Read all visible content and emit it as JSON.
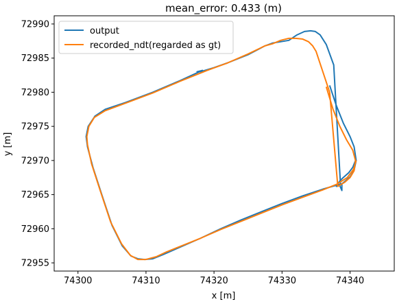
{
  "chart_data": {
    "type": "line",
    "title": "mean_error: 0.433 (m)",
    "xlabel": "x [m]",
    "ylabel": "y [m]",
    "xlim": [
      74296.5,
      74346.5
    ],
    "ylim": [
      72953.8,
      72991.2
    ],
    "x_ticks": [
      74300,
      74310,
      74320,
      74330,
      74340
    ],
    "y_ticks": [
      72955,
      72960,
      72965,
      72970,
      72975,
      72980,
      72985,
      72990
    ],
    "x_tick_labels": [
      "74300",
      "74310",
      "74320",
      "74330",
      "74340"
    ],
    "y_tick_labels": [
      "72955",
      "72960",
      "72965",
      "72970",
      "72975",
      "72980",
      "72985",
      "72990"
    ],
    "grid": false,
    "legend_position": "upper-left",
    "series": [
      {
        "name": "output",
        "color": "#1f77b4",
        "x": [
          74337.0,
          74338.0,
          74339.0,
          74340.0,
          74340.6,
          74340.9,
          74340.6,
          74340.0,
          74339.3,
          74338.6,
          74337.6,
          74336.5,
          74335.6,
          74334.9,
          74334.2,
          74333.3,
          74332.2,
          74331.0,
          74329.8,
          74328.6,
          74327.5,
          74325.0,
          74322.0,
          74320.0,
          74318.0,
          74317.5,
          74318.3,
          74315.0,
          74311.0,
          74307.0,
          74304.0,
          74302.5,
          74301.5,
          74301.2,
          74301.4,
          74302.2,
          74303.5,
          74305.0,
          74306.5,
          74307.8,
          74308.8,
          74309.8,
          74311.0,
          74312.5,
          74315.0,
          74318.0,
          74321.0,
          74324.0,
          74327.0,
          74330.0,
          74333.0,
          74336.0,
          74338.8,
          74338.8,
          74338.5,
          74338.2,
          74338.0,
          74338.2,
          74338.5,
          74339.0,
          74339.8,
          74340.4,
          74340.8
        ],
        "y": [
          72981.0,
          72978.0,
          72975.5,
          72973.5,
          72972.0,
          72970.0,
          72968.6,
          72967.6,
          72967.0,
          72966.4,
          72984.0,
          72987.0,
          72988.4,
          72988.9,
          72989.0,
          72988.9,
          72988.4,
          72987.6,
          72987.4,
          72987.2,
          72986.8,
          72985.5,
          72984.3,
          72983.6,
          72983.0,
          72983.0,
          72983.2,
          72981.7,
          72980.0,
          72978.5,
          72977.5,
          72976.5,
          72975.0,
          72973.5,
          72972.0,
          72969.0,
          72965.0,
          72960.5,
          72957.5,
          72956.0,
          72955.6,
          72955.5,
          72955.6,
          72956.2,
          72957.3,
          72958.6,
          72960.0,
          72961.3,
          72962.5,
          72963.7,
          72964.8,
          72965.8,
          72966.6,
          72965.6,
          72966.3,
          72966.6,
          72966.2,
          72966.6,
          72967.0,
          72967.5,
          72968.2,
          72969.0,
          72970.0
        ]
      },
      {
        "name": "recorded_ndt(regarded as gt)",
        "color": "#ff7f0e",
        "x": [
          74336.5,
          74337.5,
          74338.5,
          74339.5,
          74340.4,
          74340.8,
          74340.6,
          74340.0,
          74339.2,
          74338.2,
          74337.0,
          74336.0,
          74335.5,
          74335.0,
          74334.5,
          74333.9,
          74333.0,
          74332.0,
          74331.0,
          74329.8,
          74328.6,
          74327.5,
          74325.0,
          74322.0,
          74319.0,
          74315.0,
          74311.0,
          74307.0,
          74304.0,
          74302.4,
          74301.6,
          74301.3,
          74301.4,
          74302.0,
          74303.3,
          74304.8,
          74306.4,
          74307.7,
          74308.8,
          74310.0,
          74311.5,
          74313.0,
          74315.0,
          74318.0,
          74321.0,
          74324.0,
          74327.0,
          74330.0,
          74333.0,
          74336.0,
          74338.0,
          74339.6,
          74340.5,
          74340.9
        ],
        "y": [
          72980.8,
          72977.5,
          72975.0,
          72973.0,
          72971.5,
          72970.0,
          72968.5,
          72967.5,
          72966.8,
          72966.2,
          72980.0,
          72983.0,
          72984.5,
          72986.0,
          72986.8,
          72987.4,
          72987.8,
          72987.9,
          72987.9,
          72987.6,
          72987.1,
          72986.8,
          72985.6,
          72984.3,
          72983.2,
          72981.6,
          72979.9,
          72978.4,
          72977.3,
          72976.3,
          72975.0,
          72973.5,
          72972.3,
          72969.5,
          72965.5,
          72961.0,
          72957.8,
          72956.1,
          72955.5,
          72955.5,
          72955.9,
          72956.6,
          72957.4,
          72958.6,
          72959.9,
          72961.1,
          72962.3,
          72963.5,
          72964.6,
          72965.7,
          72966.5,
          72967.5,
          72968.7,
          72970.0
        ]
      }
    ]
  }
}
